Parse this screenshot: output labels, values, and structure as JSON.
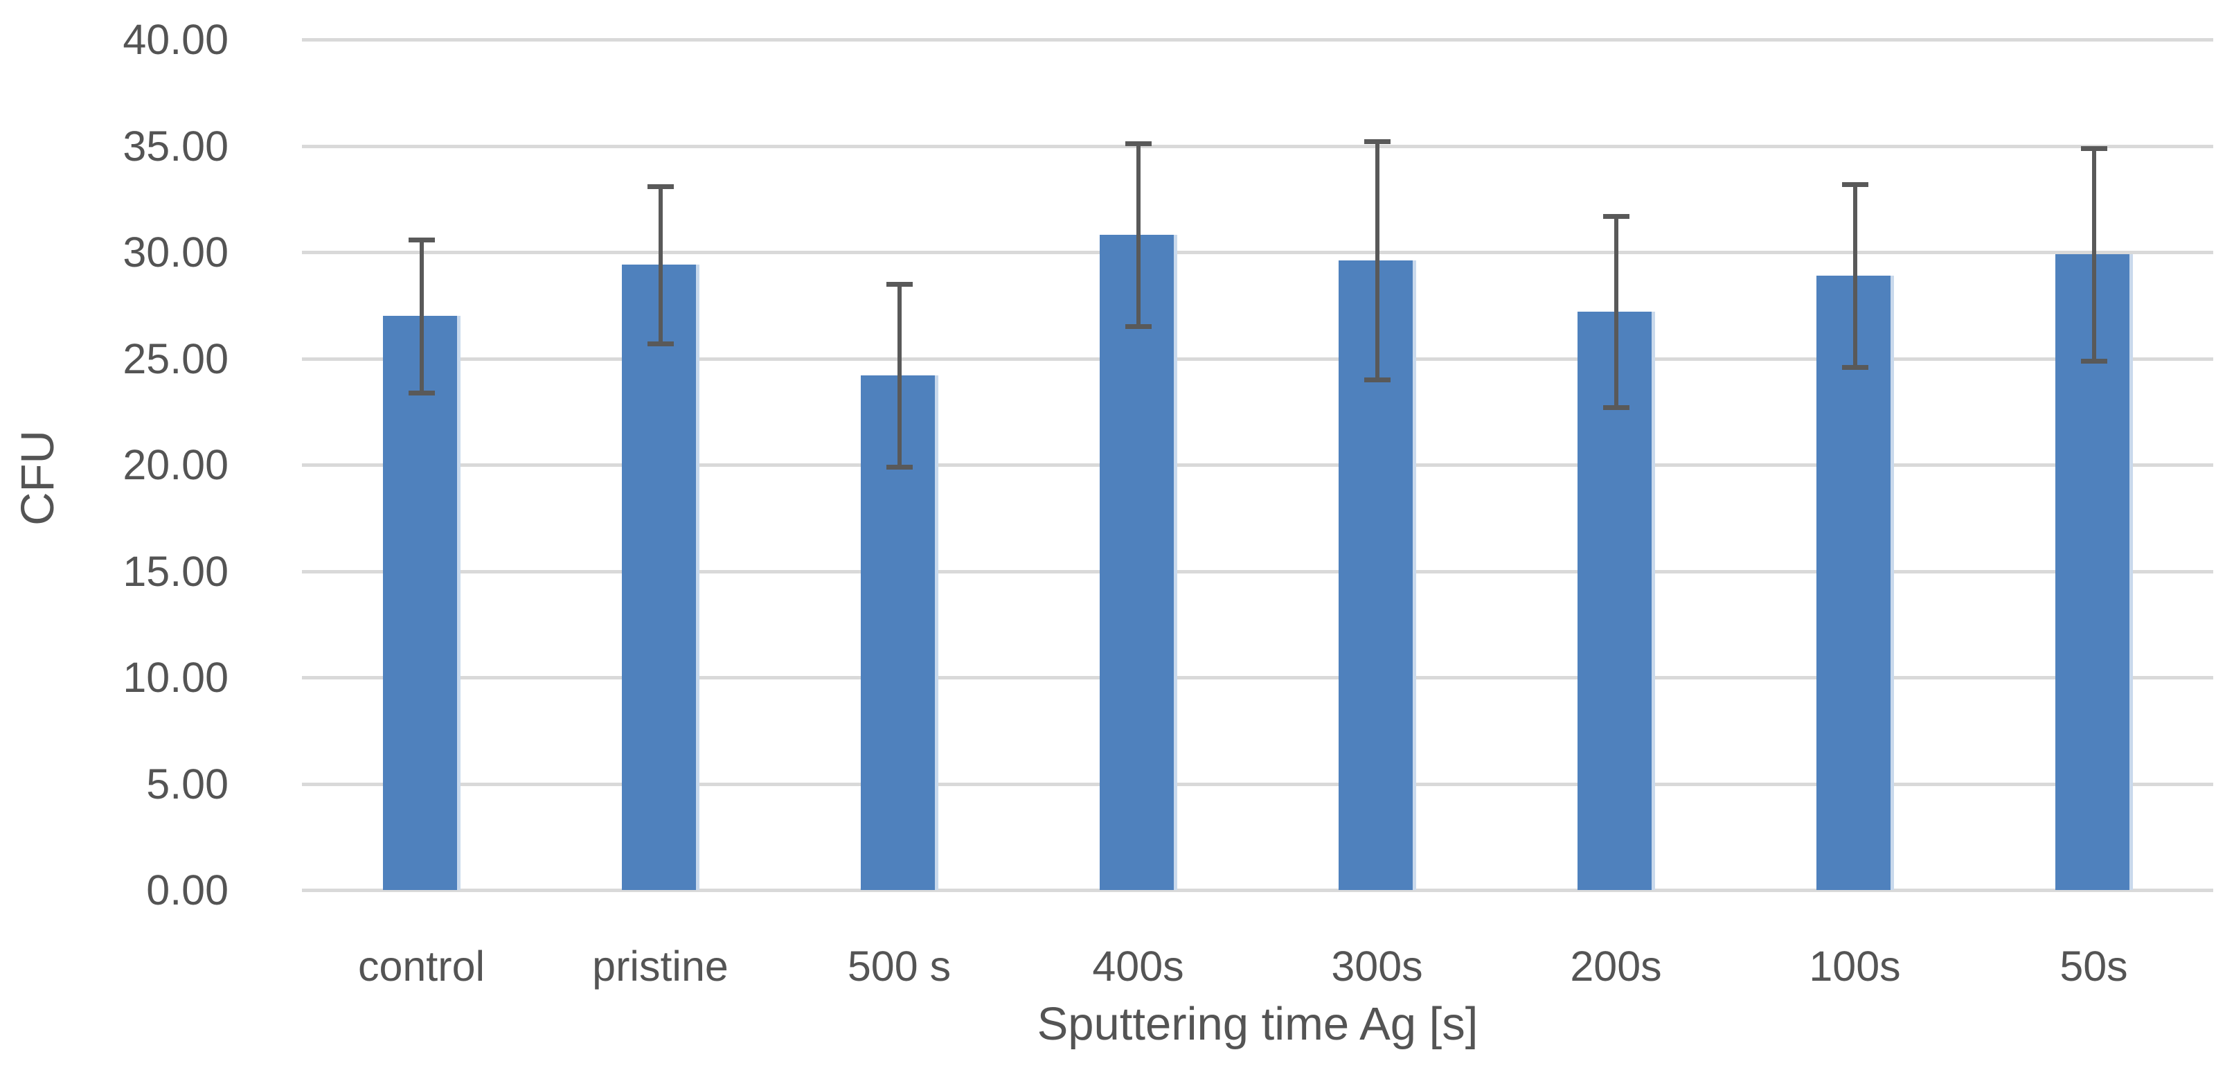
{
  "chart_data": {
    "type": "bar",
    "title": "",
    "xlabel": "Sputtering time Ag [s]",
    "ylabel": "CFU",
    "categories": [
      "control",
      "pristine",
      "500 s",
      "400s",
      "300s",
      "200s",
      "100s",
      "50s"
    ],
    "values": [
      27.0,
      29.4,
      24.2,
      30.8,
      29.6,
      27.2,
      28.9,
      29.9
    ],
    "error_bars": [
      3.6,
      3.7,
      4.3,
      4.3,
      5.6,
      4.5,
      4.3,
      5.0
    ],
    "ylim": [
      0,
      40
    ],
    "ytick_step": 5,
    "ytick_labels": [
      "40.00",
      "35.00",
      "30.00",
      "25.00",
      "20.00",
      "15.00",
      "10.00",
      "5.00",
      "0.00"
    ],
    "grid": true,
    "legend": false,
    "colors": {
      "bar_fill": "#4f81bd",
      "bar_edge_highlight": "#c9d9ec",
      "error_bar": "#595959",
      "gridline": "#d9d9d9",
      "text": "#545454",
      "background": "#ffffff"
    }
  }
}
